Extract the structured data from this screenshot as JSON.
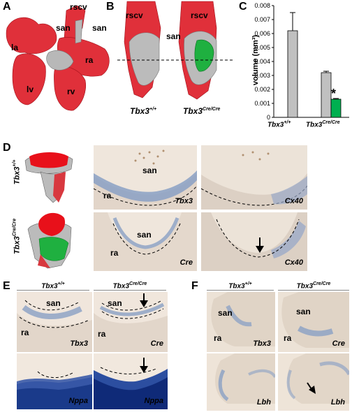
{
  "panels": {
    "A": {
      "letter": "A",
      "labels": {
        "rscv": "rscv",
        "san_left": "san",
        "san_right": "san",
        "la": "la",
        "ra": "ra",
        "lv": "lv",
        "rv": "rv"
      }
    },
    "B": {
      "letter": "B",
      "labels": {
        "rscv_left": "rscv",
        "rscv_right": "rscv",
        "san": "san"
      },
      "genotype_left": "Tbx3",
      "genotype_left_sup": "+/+",
      "genotype_right": "Tbx3",
      "genotype_right_sup": "Cre/Cre"
    },
    "C": {
      "letter": "C",
      "significance": "*"
    },
    "D": {
      "letter": "D",
      "side_top": "Tbx3",
      "side_top_sup": "+/+",
      "side_bottom": "Tbx3",
      "side_bottom_sup": "Cre/Cre",
      "tiles": [
        {
          "tag": "Tbx3",
          "san": "san",
          "ra": "ra"
        },
        {
          "tag": "Cx40"
        },
        {
          "tag": "Cre",
          "san": "san",
          "ra": "ra"
        },
        {
          "tag": "Cx40"
        }
      ]
    },
    "E": {
      "letter": "E",
      "header_left": "Tbx3",
      "header_left_sup": "+/+",
      "header_right": "Tbx3",
      "header_right_sup": "Cre/Cre",
      "tiles": [
        {
          "tag": "Tbx3",
          "san": "san",
          "ra": "ra"
        },
        {
          "tag": "Cre",
          "san": "san",
          "ra": "ra"
        },
        {
          "tag": "Nppa"
        },
        {
          "tag": "Nppa"
        }
      ]
    },
    "F": {
      "letter": "F",
      "header_left": "Tbx3",
      "header_left_sup": "+/+",
      "header_right": "Tbx3",
      "header_right_sup": "Cre/Cre",
      "tiles": [
        {
          "tag": "Tbx3",
          "san": "san",
          "ra": "ra"
        },
        {
          "tag": "Cre",
          "san": "san",
          "ra": "ra"
        },
        {
          "tag": "Lbh"
        },
        {
          "tag": "Lbh"
        }
      ]
    }
  },
  "chart_data": {
    "type": "bar",
    "ylabel": "volume (mm³)",
    "ylim": [
      0,
      0.008
    ],
    "yticks": [
      "0",
      "0.001",
      "0.002",
      "0.003",
      "0.004",
      "0.005",
      "0.006",
      "0.007",
      "0.008"
    ],
    "categories": [
      "Tbx3+/+",
      "Tbx3Cre/Cre"
    ],
    "category_labels": [
      {
        "base": "Tbx3",
        "sup": "+/+"
      },
      {
        "base": "Tbx3",
        "sup": "Cre/Cre"
      }
    ],
    "bars": [
      {
        "category": "Tbx3+/+",
        "value": 0.0062,
        "error": 0.0013,
        "color": "#c0c0c0"
      },
      {
        "category": "Tbx3Cre/Cre",
        "value": 0.0032,
        "error": 0.0001,
        "color": "#c0c0c0"
      },
      {
        "category": "Tbx3Cre/Cre",
        "value": 0.0013,
        "error": 5e-05,
        "color": "#00b050"
      }
    ],
    "grid": false
  }
}
